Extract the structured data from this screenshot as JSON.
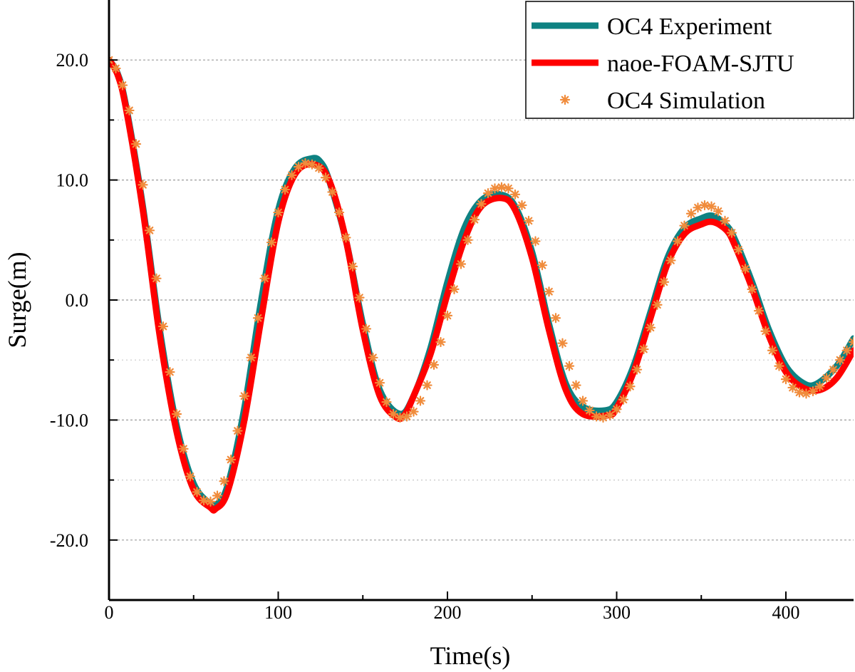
{
  "chart_data": {
    "type": "line",
    "title": "",
    "xlabel": "Time(s)",
    "ylabel": "Surge(m)",
    "xlim": [
      0,
      440
    ],
    "ylim": [
      -25,
      25
    ],
    "x_ticks": [
      0,
      100,
      200,
      300,
      400
    ],
    "x_tick_labels": [
      "0",
      "100",
      "200",
      "300",
      "400"
    ],
    "y_ticks": [
      -20,
      -10,
      0,
      10,
      20
    ],
    "y_tick_labels": [
      "-20.0",
      "-10.0",
      "0.0",
      "10.0",
      "20.0"
    ],
    "grid": "horizontal dashed, major and minor",
    "legend": {
      "position": "top-right"
    },
    "series": [
      {
        "name": "OC4 Experiment",
        "style": "line",
        "color": "#0e8282",
        "x": [
          0,
          5,
          10,
          20,
          30,
          40,
          50,
          60,
          63,
          70,
          80,
          90,
          100,
          110,
          120,
          125,
          130,
          140,
          150,
          160,
          172,
          180,
          190,
          200,
          210,
          220,
          231,
          240,
          250,
          260,
          270,
          280,
          293,
          300,
          310,
          320,
          330,
          340,
          350,
          357,
          365,
          370,
          380,
          390,
          400,
          410,
          418,
          430,
          440
        ],
        "y": [
          20.0,
          18.9,
          16.2,
          7.8,
          -2.5,
          -10.5,
          -15.3,
          -17.0,
          -17.1,
          -15.5,
          -9.0,
          0.0,
          7.5,
          11.0,
          11.8,
          11.5,
          10.0,
          5.0,
          -2.0,
          -7.5,
          -9.5,
          -8.0,
          -4.0,
          1.5,
          6.0,
          8.3,
          8.8,
          7.8,
          4.0,
          -2.0,
          -7.0,
          -8.9,
          -9.2,
          -8.5,
          -5.5,
          -1.0,
          3.5,
          6.0,
          6.8,
          7.0,
          6.2,
          5.0,
          1.5,
          -2.5,
          -5.5,
          -6.9,
          -7.0,
          -5.5,
          -3.2
        ]
      },
      {
        "name": "naoe-FOAM-SJTU",
        "style": "line",
        "color": "#ff0000",
        "x": [
          0,
          5,
          10,
          20,
          30,
          40,
          50,
          60,
          63,
          70,
          80,
          90,
          100,
          110,
          121,
          130,
          140,
          150,
          160,
          170,
          175,
          180,
          190,
          200,
          210,
          220,
          232,
          240,
          250,
          260,
          270,
          280,
          295,
          300,
          310,
          320,
          330,
          340,
          350,
          357,
          365,
          370,
          380,
          390,
          400,
          410,
          420,
          430,
          440
        ],
        "y": [
          20.0,
          18.8,
          16.0,
          7.5,
          -3.0,
          -11.0,
          -15.8,
          -17.3,
          -17.4,
          -16.0,
          -10.0,
          -1.5,
          6.5,
          10.5,
          11.3,
          10.0,
          5.0,
          -2.5,
          -8.0,
          -9.8,
          -9.5,
          -8.0,
          -4.5,
          0.5,
          5.0,
          7.8,
          8.5,
          7.5,
          3.5,
          -2.5,
          -7.5,
          -9.5,
          -9.6,
          -9.0,
          -6.0,
          -1.5,
          3.0,
          5.5,
          6.3,
          6.5,
          5.8,
          4.5,
          1.0,
          -3.0,
          -6.0,
          -7.3,
          -7.5,
          -6.5,
          -4.2
        ]
      },
      {
        "name": "OC4 Simulation",
        "style": "markers",
        "color": "#f08c3c",
        "x": [
          0,
          4,
          8,
          12,
          16,
          20,
          24,
          28,
          32,
          36,
          40,
          44,
          48,
          52,
          56,
          60,
          64,
          68,
          72,
          76,
          80,
          84,
          88,
          92,
          96,
          100,
          104,
          108,
          112,
          116,
          120,
          124,
          128,
          132,
          136,
          140,
          144,
          148,
          152,
          156,
          160,
          164,
          168,
          172,
          176,
          180,
          184,
          188,
          192,
          196,
          200,
          204,
          208,
          212,
          216,
          220,
          224,
          228,
          232,
          236,
          240,
          244,
          248,
          252,
          256,
          260,
          264,
          268,
          272,
          276,
          280,
          284,
          288,
          292,
          296,
          300,
          304,
          308,
          312,
          316,
          320,
          324,
          328,
          332,
          336,
          340,
          344,
          348,
          352,
          356,
          360,
          364,
          368,
          372,
          376,
          380,
          384,
          388,
          392,
          396,
          400,
          404,
          408,
          412,
          416,
          420,
          424,
          428,
          432,
          436,
          440
        ],
        "y": [
          20.0,
          19.3,
          17.9,
          15.8,
          13.0,
          9.6,
          5.8,
          1.8,
          -2.2,
          -6.0,
          -9.5,
          -12.4,
          -14.7,
          -16.0,
          -16.7,
          -16.8,
          -16.3,
          -15.1,
          -13.3,
          -10.9,
          -8.0,
          -4.8,
          -1.5,
          1.8,
          4.8,
          7.3,
          9.2,
          10.4,
          11.1,
          11.4,
          11.3,
          11.0,
          10.2,
          9.0,
          7.3,
          5.2,
          2.8,
          0.2,
          -2.4,
          -4.8,
          -6.9,
          -8.5,
          -9.5,
          -9.8,
          -9.7,
          -9.3,
          -8.4,
          -7.1,
          -5.4,
          -3.5,
          -1.3,
          0.9,
          3.0,
          5.0,
          6.7,
          8.0,
          8.9,
          9.3,
          9.4,
          9.3,
          8.8,
          7.9,
          6.6,
          4.9,
          2.9,
          0.7,
          -1.5,
          -3.6,
          -5.5,
          -7.1,
          -8.4,
          -9.2,
          -9.7,
          -9.8,
          -9.6,
          -9.1,
          -8.3,
          -7.2,
          -5.8,
          -4.1,
          -2.3,
          -0.4,
          1.5,
          3.3,
          4.9,
          6.2,
          7.2,
          7.7,
          7.9,
          7.8,
          7.4,
          6.6,
          5.6,
          4.2,
          2.6,
          0.9,
          -0.9,
          -2.6,
          -4.2,
          -5.5,
          -6.6,
          -7.3,
          -7.7,
          -7.8,
          -7.6,
          -7.2,
          -6.5,
          -5.8,
          -5.0,
          -4.2,
          -3.5
        ]
      }
    ]
  }
}
